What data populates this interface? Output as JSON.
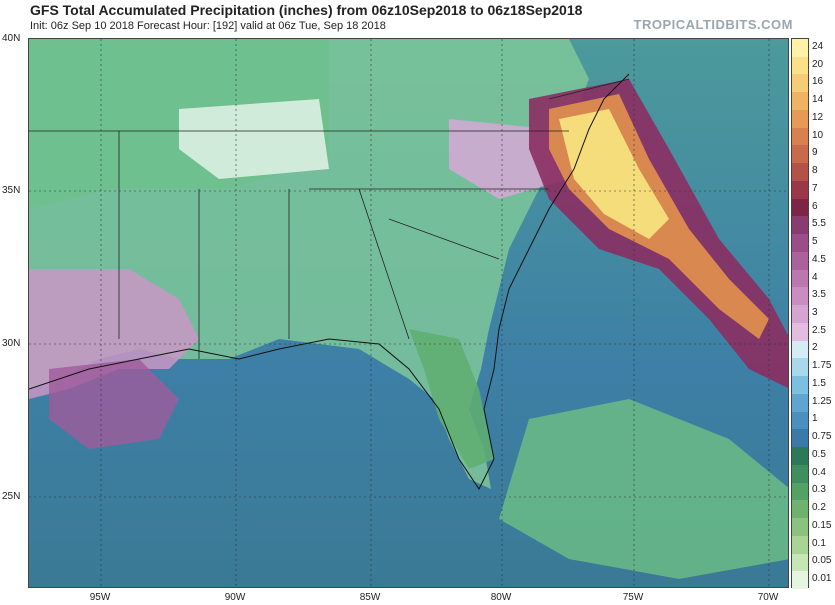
{
  "header": {
    "title": "GFS Total Accumulated Precipitation (inches) from 06z10Sep2018 to 06z18Sep2018",
    "subtitle": "Init: 06z Sep 10 2018   Forecast Hour: [192]   valid at 06z Tue, Sep 18 2018",
    "brand": "TROPICALTIDBITS.COM"
  },
  "axes": {
    "lat_labels": [
      "40N",
      "35N",
      "30N",
      "25N"
    ],
    "lon_labels": [
      "95W",
      "90W",
      "85W",
      "80W",
      "75W",
      "70W"
    ]
  },
  "colorbar": {
    "levels": [
      "24",
      "20",
      "16",
      "14",
      "12",
      "10",
      "9",
      "8",
      "7",
      "6",
      "5.5",
      "5",
      "4.5",
      "4",
      "3.5",
      "3",
      "2.5",
      "2",
      "1.75",
      "1.5",
      "1.25",
      "1",
      "0.75",
      "0.5",
      "0.4",
      "0.3",
      "0.2",
      "0.15",
      "0.1",
      "0.05",
      "0.01"
    ],
    "colors": [
      "#fff2a8",
      "#fbe08a",
      "#f5cd76",
      "#efb463",
      "#e59a57",
      "#d98050",
      "#c96a4c",
      "#b45247",
      "#9a3748",
      "#7e2446",
      "#8a3b71",
      "#9a4d88",
      "#ab629c",
      "#bb78b0",
      "#c98dc1",
      "#d6a4d1",
      "#e2bde1",
      "#d4ecf6",
      "#a9d8ec",
      "#7dbfe0",
      "#5ea6d0",
      "#4a8fc0",
      "#3b7aa8",
      "#2a7a5a",
      "#3d8f5d",
      "#54a165",
      "#6eb26f",
      "#8bc37e",
      "#a8d495",
      "#c7e6b6",
      "#e6f5df"
    ]
  },
  "map": {
    "description_colors": {
      "ocean": "#3d7fa6",
      "land_light": "#8fd3a0",
      "heavy_rain": "#f4c666"
    }
  }
}
